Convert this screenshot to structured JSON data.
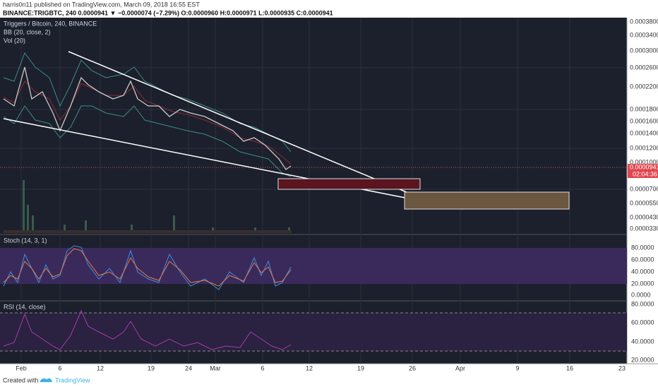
{
  "header": {
    "author_line": "harris0n11 published on TradingView.com, March 09, 2018 16:55 EST",
    "symbol_line": "BINANCE:TRIGBTC, 240  0.0000941 ▼ −0.0000074 (−7.29%) O:0.0000960 H:0.0000971 L:0.0000935 C:0.0000941"
  },
  "main_pane": {
    "legend": [
      "Triggers / Bitcoin, 240, BINANCE",
      "BB (20, close, 2)",
      "Vol (20)"
    ],
    "price_labels": [
      "0.0003800",
      "0.0003400",
      "0.0003000",
      "0.0002600",
      "0.0002200",
      "0.0001800",
      "0.0001600",
      "0.0001400",
      "0.0001200",
      "0.0001000",
      "0.0000700",
      "0.0000550",
      "0.0000430",
      "0.0000330"
    ],
    "last_price": "0.0000941",
    "countdown": "02:04:36"
  },
  "stoch_pane": {
    "legend": "Stoch (14, 3, 1)",
    "labels": [
      "80.0000",
      "60.0000",
      "40.0000",
      "20.0000",
      "0.0000"
    ]
  },
  "rsi_pane": {
    "legend": "RSI (14, close)",
    "labels": [
      "80.0000",
      "60.0000",
      "40.0000",
      "20.0000"
    ]
  },
  "time_axis": [
    "Feb",
    "6",
    "12",
    "19",
    "24",
    "Mar",
    "6",
    "12",
    "19",
    "26",
    "Apr",
    "9",
    "16",
    "23"
  ],
  "footer": {
    "created": "Created with",
    "brand": "TradingView"
  }
}
